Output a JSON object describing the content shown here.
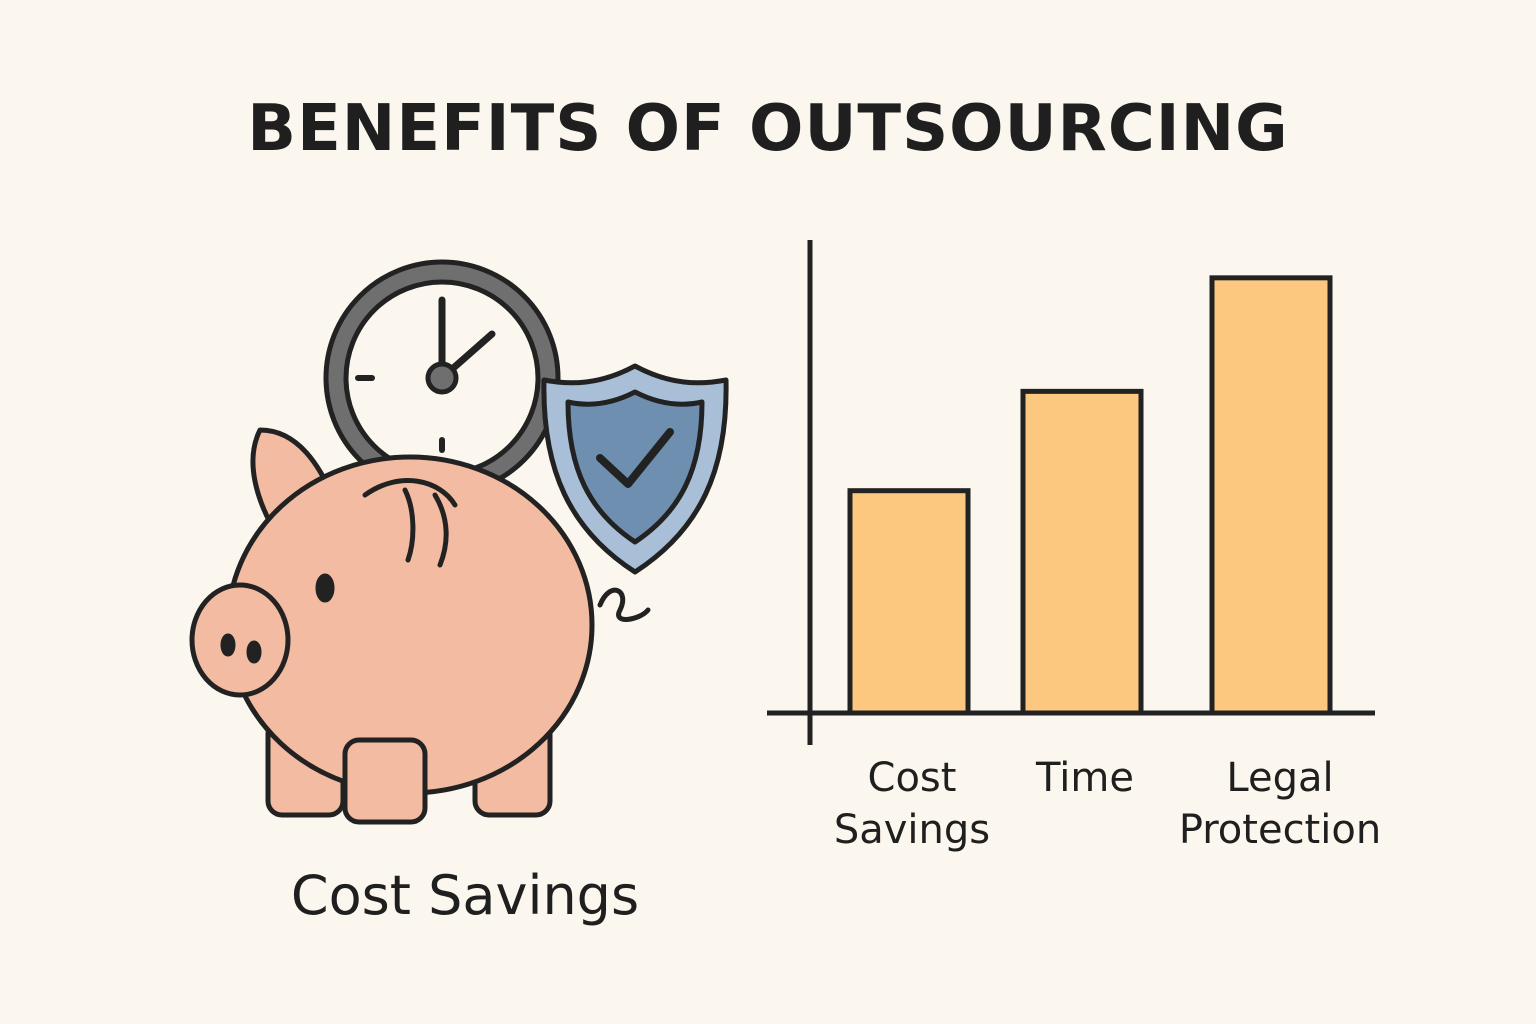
{
  "chart_data": {
    "type": "bar",
    "title": "BENEFITS OF OUTSOURCING",
    "caption": "Cost Savings",
    "categories": [
      "Cost Savings",
      "Time",
      "Legal Protection"
    ],
    "values": [
      47,
      68,
      92
    ],
    "color": "#fcc87f",
    "ylim": [
      0,
      100
    ]
  }
}
